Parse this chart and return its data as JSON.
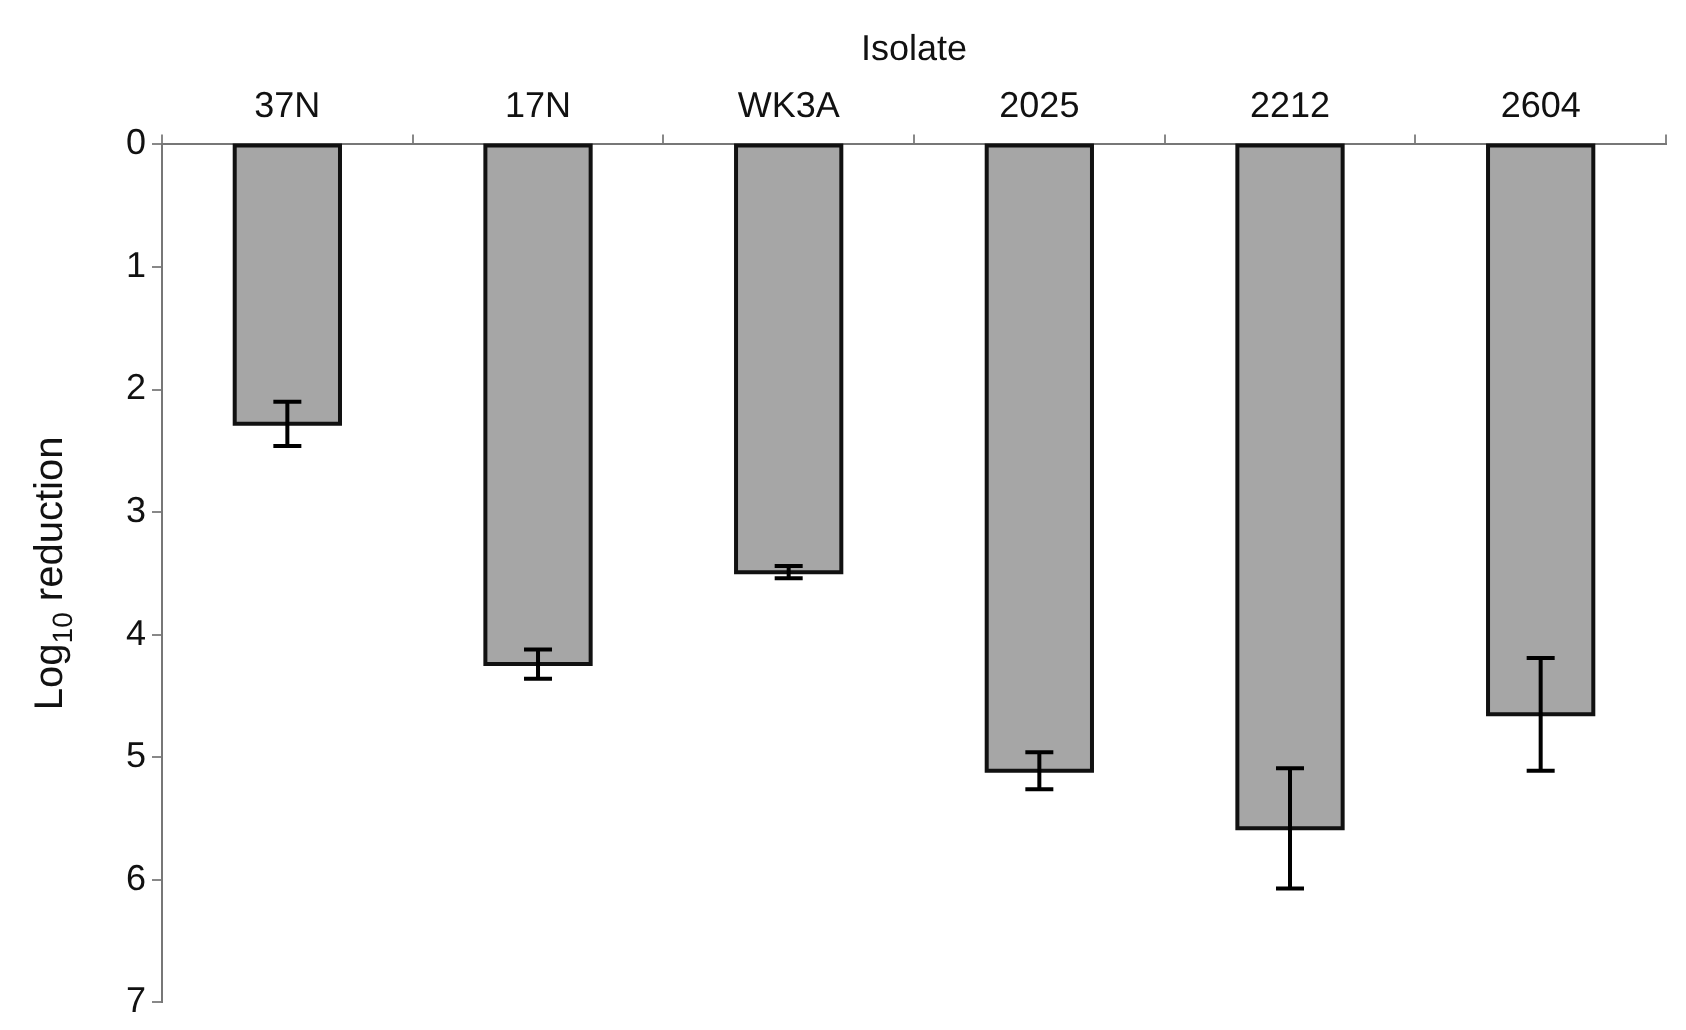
{
  "chart_data": {
    "type": "bar",
    "xlabel": "Isolate",
    "ylabel": "Log$_{10}$ reduction",
    "categories": [
      "37N",
      "17N",
      "WK3A",
      "2025",
      "2212",
      "2604"
    ],
    "values": [
      2.28,
      4.24,
      3.49,
      5.11,
      5.58,
      4.65
    ],
    "errors": [
      0.18,
      0.12,
      0.05,
      0.15,
      0.49,
      0.46
    ],
    "color": "#a6a6a6",
    "ylim": [
      7,
      0
    ],
    "yticks": [
      0,
      1,
      2,
      3,
      4,
      5,
      6,
      7
    ],
    "grid": false,
    "legend": false
  }
}
